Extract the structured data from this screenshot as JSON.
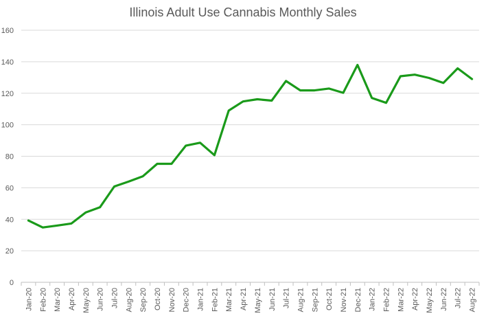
{
  "chart_data": {
    "type": "line",
    "title": "Illinois Adult Use Cannabis Monthly Sales",
    "xlabel": "",
    "ylabel": "",
    "ylim": [
      0,
      160
    ],
    "yticks": [
      0,
      20,
      40,
      60,
      80,
      100,
      120,
      140,
      160
    ],
    "grid": true,
    "legend": "none",
    "categories": [
      "Jan-20",
      "Feb-20",
      "Mar-20",
      "Apr-20",
      "May-20",
      "Jun-20",
      "Jul-20",
      "Aug-20",
      "Sep-20",
      "Oct-20",
      "Nov-20",
      "Dec-20",
      "Jan-21",
      "Feb-21",
      "Mar-21",
      "Apr-21",
      "May-21",
      "Jun-21",
      "Jul-21",
      "Aug-21",
      "Sep-21",
      "Oct-21",
      "Nov-21",
      "Dec-21",
      "Jan-22",
      "Feb-22",
      "Mar-22",
      "Apr-22",
      "May-22",
      "Jun-22",
      "Jul-22",
      "Aug-22"
    ],
    "series": [
      {
        "name": "Monthly Sales",
        "color": "#1a9a1a",
        "values": [
          39.2,
          34.8,
          36.0,
          37.3,
          44.3,
          47.6,
          60.8,
          63.9,
          67.3,
          75.2,
          75.2,
          86.7,
          88.6,
          80.7,
          109.0,
          114.8,
          116.2,
          115.3,
          127.8,
          121.8,
          121.8,
          123.0,
          120.3,
          138.0,
          117.0,
          113.9,
          130.8,
          131.8,
          129.7,
          126.5,
          135.8,
          129.0
        ]
      }
    ]
  }
}
